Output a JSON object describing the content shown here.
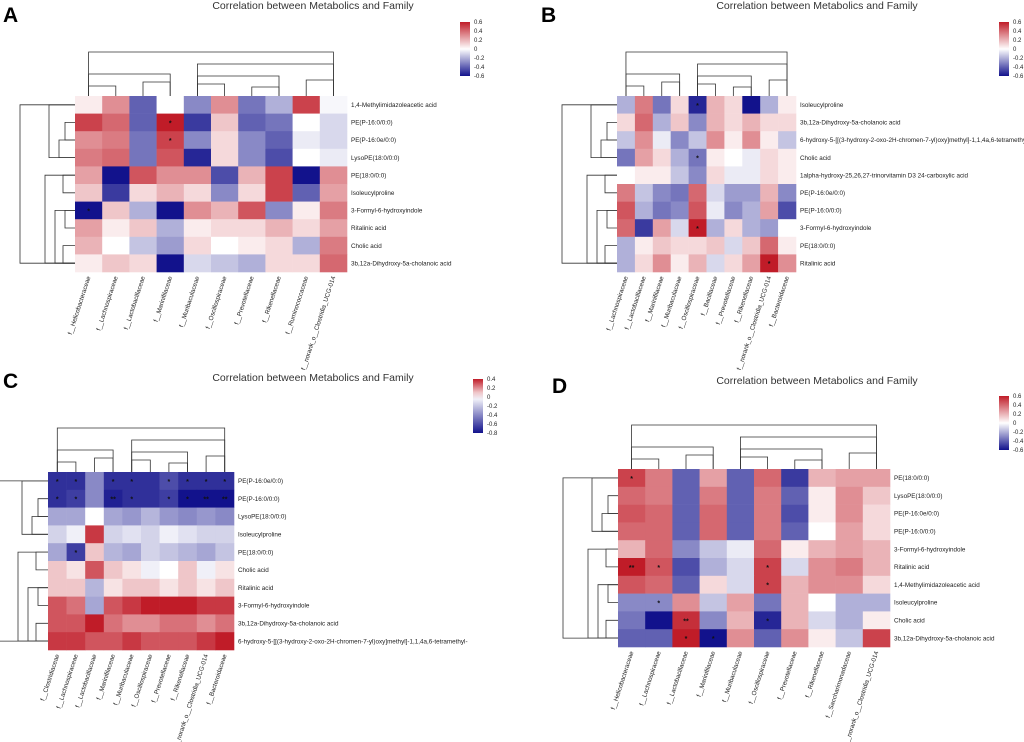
{
  "chart_data": [
    {
      "type": "heatmap",
      "panel_label": "A",
      "title": "Correlation between Metabolics and Family",
      "colorbar_ticks": [
        "0.6",
        "0.4",
        "0.2",
        "0",
        "-0.2",
        "-0.4",
        "-0.6"
      ],
      "vmin": -0.6,
      "vmax": 0.6,
      "columns": [
        "f__Helicobacteraceae",
        "f__Lachnospiraceae",
        "f__Lactobacillaceae",
        "f__Marinifilaceae",
        "f__Muribaculaceae",
        "f__Oscillospiraceae",
        "f__Prevotellaceae",
        "f__Rikenellaceae",
        "f__Ruminococcaceae",
        "f__norank_o__Clostridia_UCG-014"
      ],
      "rows": [
        "1,4-Methylimidazoleacetic acid",
        "PE(P-16:0/0:0)",
        "PE(P-16:0e/0:0)",
        "LysoPE(18:0/0:0)",
        "PE(18:0/0:0)",
        "Isoleucylproline",
        "3-Formyl-6-hydroxyindole",
        "Ritalinic acid",
        "Cholic acid",
        "3b,12a-Dihydroxy-5a-cholanoic acid"
      ],
      "values": [
        [
          0.05,
          0.3,
          -0.4,
          0.0,
          -0.3,
          0.3,
          -0.35,
          -0.2,
          0.5,
          -0.02
        ],
        [
          0.5,
          0.4,
          -0.4,
          0.6,
          -0.5,
          0.15,
          -0.4,
          -0.35,
          0.0,
          -0.1
        ],
        [
          0.3,
          0.35,
          -0.35,
          0.5,
          -0.3,
          0.1,
          -0.3,
          -0.4,
          -0.05,
          -0.1
        ],
        [
          0.35,
          0.4,
          -0.35,
          0.45,
          -0.55,
          0.1,
          -0.3,
          -0.45,
          0.0,
          -0.05
        ],
        [
          0.25,
          -0.6,
          0.45,
          0.3,
          0.3,
          -0.45,
          0.2,
          0.5,
          -0.6,
          0.3
        ],
        [
          0.15,
          -0.5,
          0.1,
          0.2,
          0.1,
          -0.3,
          0.1,
          0.5,
          -0.4,
          0.25
        ],
        [
          -0.6,
          0.15,
          -0.2,
          -0.6,
          0.3,
          0.2,
          0.45,
          -0.3,
          0.05,
          0.35
        ],
        [
          0.25,
          0.05,
          0.15,
          -0.2,
          0.05,
          0.1,
          0.1,
          0.2,
          0.1,
          0.25
        ],
        [
          0.2,
          0.0,
          -0.15,
          -0.25,
          0.1,
          0.0,
          0.05,
          0.1,
          -0.2,
          0.35
        ],
        [
          0.05,
          0.15,
          0.1,
          -0.6,
          -0.1,
          -0.15,
          -0.2,
          0.1,
          0.1,
          0.4
        ]
      ],
      "marks": [
        {
          "row": 1,
          "col": 3,
          "text": "*"
        },
        {
          "row": 2,
          "col": 3,
          "text": "*"
        },
        {
          "row": 6,
          "col": 0,
          "text": "*"
        }
      ]
    },
    {
      "type": "heatmap",
      "panel_label": "B",
      "title": "Correlation between Metabolics and Family",
      "colorbar_ticks": [
        "0.6",
        "0.4",
        "0.2",
        "0",
        "-0.2",
        "-0.4",
        "-0.6"
      ],
      "vmin": -0.6,
      "vmax": 0.6,
      "columns": [
        "f__Lachnospiraceae",
        "f__Lactobacillaceae",
        "f__Marinifilaceae",
        "f__Muribaculaceae",
        "f__Oscillospiraceae",
        "f__Bacillaceae",
        "f__Prevotellaceae",
        "f__Rikenellaceae",
        "f__norank_o__Clostridia_UCG-014",
        "f__Bacteroidaceae"
      ],
      "rows": [
        "Isoleucylproline",
        "3b,12a-Dihydroxy-5a-cholanoic acid",
        "6-hydroxy-5-[[(3-hydroxy-2-oxo-2H-chromen-7-yl)oxy]methyl]-1,1,4a,6-tetramethyl-",
        "Cholic acid",
        "1alpha-hydroxy-25,26,27-trinorvitamin D3 24-carboxylic acid",
        "PE(P-16:0e/0:0)",
        "PE(P-16:0/0:0)",
        "3-Formyl-6-hydroxyindole",
        "PE(18:0/0:0)",
        "Ritalinic acid"
      ],
      "values": [
        [
          -0.2,
          0.35,
          -0.35,
          0.1,
          -0.55,
          0.2,
          0.1,
          -0.6,
          -0.2,
          0.05
        ],
        [
          0.1,
          0.4,
          -0.2,
          0.15,
          -0.3,
          0.2,
          0.1,
          0.2,
          0.1,
          0.1
        ],
        [
          -0.15,
          0.3,
          -0.05,
          -0.3,
          -0.15,
          0.3,
          0.05,
          0.3,
          0.05,
          -0.15
        ],
        [
          -0.35,
          0.25,
          0.1,
          -0.2,
          -0.35,
          0.05,
          0.0,
          -0.05,
          0.1,
          0.05
        ],
        [
          0.0,
          0.05,
          0.05,
          -0.15,
          -0.3,
          0.1,
          -0.05,
          -0.05,
          0.1,
          0.05
        ],
        [
          0.35,
          -0.15,
          -0.3,
          -0.35,
          0.4,
          -0.1,
          -0.25,
          -0.25,
          0.2,
          -0.3
        ],
        [
          0.45,
          -0.2,
          -0.35,
          -0.3,
          0.45,
          -0.05,
          -0.3,
          -0.2,
          0.25,
          -0.45
        ],
        [
          0.4,
          -0.5,
          0.25,
          -0.1,
          0.6,
          -0.2,
          0.1,
          -0.2,
          -0.25,
          0.0
        ],
        [
          -0.2,
          0.05,
          0.15,
          0.1,
          0.1,
          0.15,
          -0.1,
          0.15,
          0.4,
          0.05
        ],
        [
          -0.2,
          0.1,
          0.3,
          0.05,
          0.2,
          -0.1,
          0.1,
          0.25,
          0.6,
          0.3
        ]
      ],
      "marks": [
        {
          "row": 0,
          "col": 4,
          "text": "*"
        },
        {
          "row": 3,
          "col": 4,
          "text": "*"
        },
        {
          "row": 7,
          "col": 4,
          "text": "*"
        },
        {
          "row": 9,
          "col": 8,
          "text": "*"
        }
      ]
    },
    {
      "type": "heatmap",
      "panel_label": "C",
      "title": "Correlation between Metabolics and Family",
      "colorbar_ticks": [
        "0.4",
        "0.2",
        "0",
        "-0.2",
        "-0.4",
        "-0.6",
        "-0.8"
      ],
      "vmin": -0.8,
      "vmax": 0.4,
      "columns": [
        "f__Clostridiaceae",
        "f__Lachnospiraceae",
        "f__Lactobacillaceae",
        "f__Marinifilaceae",
        "f__Muribaculaceae",
        "f__Oscillospiraceae",
        "f__Prevotellaceae",
        "f__Rikenellaceae",
        "f__norank_o__Clostridia_UCG-014",
        "f__Bacteroidaceae"
      ],
      "rows": [
        "PE(P-16:0e/0:0)",
        "PE(P-16:0/0:0)",
        "LysoPE(18:0/0:0)",
        "Isoleucylproline",
        "PE(18:0/0:0)",
        "Cholic acid",
        "Ritalinic acid",
        "3-Formyl-6-hydroxyindole",
        "3b,12a-Dihydroxy-5a-cholanoic acid",
        "6-hydroxy-5-[[(3-hydroxy-2-oxo-2H-chromen-7-yl)oxy]methyl]-1,1,4a,6-tetramethyl-"
      ],
      "values": [
        [
          -0.7,
          -0.7,
          -0.4,
          -0.7,
          -0.7,
          -0.7,
          -0.6,
          -0.7,
          -0.7,
          -0.7
        ],
        [
          -0.7,
          -0.65,
          -0.4,
          -0.75,
          -0.7,
          -0.7,
          -0.65,
          -0.8,
          -0.8,
          -0.8
        ],
        [
          -0.3,
          -0.3,
          0.0,
          -0.3,
          -0.35,
          -0.25,
          -0.35,
          -0.4,
          -0.35,
          -0.4
        ],
        [
          -0.15,
          -0.05,
          0.35,
          -0.15,
          -0.1,
          -0.15,
          -0.05,
          -0.1,
          -0.15,
          -0.15
        ],
        [
          -0.3,
          -0.65,
          0.1,
          -0.25,
          -0.3,
          -0.15,
          -0.2,
          -0.25,
          -0.3,
          -0.2
        ],
        [
          0.1,
          0.05,
          0.3,
          0.1,
          0.05,
          -0.05,
          0.0,
          0.1,
          -0.05,
          0.05
        ],
        [
          0.1,
          0.1,
          -0.25,
          0.05,
          0.1,
          0.1,
          0.05,
          0.1,
          0.05,
          0.1
        ],
        [
          0.3,
          0.25,
          -0.3,
          0.3,
          0.35,
          0.4,
          0.4,
          0.4,
          0.35,
          0.35
        ],
        [
          0.3,
          0.3,
          0.4,
          0.25,
          0.2,
          0.2,
          0.25,
          0.25,
          0.2,
          0.25
        ],
        [
          0.35,
          0.35,
          0.3,
          0.3,
          0.35,
          0.3,
          0.3,
          0.3,
          0.35,
          0.4
        ]
      ],
      "marks": [
        {
          "row": 0,
          "col": 0,
          "text": "*"
        },
        {
          "row": 0,
          "col": 1,
          "text": "*"
        },
        {
          "row": 0,
          "col": 3,
          "text": "*"
        },
        {
          "row": 0,
          "col": 4,
          "text": "*"
        },
        {
          "row": 0,
          "col": 6,
          "text": "*"
        },
        {
          "row": 0,
          "col": 7,
          "text": "*"
        },
        {
          "row": 0,
          "col": 8,
          "text": "*"
        },
        {
          "row": 0,
          "col": 9,
          "text": "*"
        },
        {
          "row": 1,
          "col": 0,
          "text": "*"
        },
        {
          "row": 1,
          "col": 1,
          "text": "*"
        },
        {
          "row": 1,
          "col": 3,
          "text": "**"
        },
        {
          "row": 1,
          "col": 4,
          "text": "*"
        },
        {
          "row": 1,
          "col": 6,
          "text": "*"
        },
        {
          "row": 1,
          "col": 7,
          "text": "*"
        },
        {
          "row": 1,
          "col": 8,
          "text": "**"
        },
        {
          "row": 1,
          "col": 9,
          "text": "**"
        },
        {
          "row": 4,
          "col": 1,
          "text": "*"
        }
      ]
    },
    {
      "type": "heatmap",
      "panel_label": "D",
      "title": "Correlation between Metabolics and Family",
      "colorbar_ticks": [
        "0.6",
        "0.4",
        "0.2",
        "0",
        "-0.2",
        "-0.4",
        "-0.6"
      ],
      "vmin": -0.6,
      "vmax": 0.6,
      "columns": [
        "f__Helicobacteraceae",
        "f__Lachnospiraceae",
        "f__Lactobacillaceae",
        "f__Marinifilaceae",
        "f__Muribaculaceae",
        "f__Oscillospiraceae",
        "f__Prevotellaceae",
        "f__Rikenellaceae",
        "f__Saccharimonadaceae",
        "f__norank_o__Clostridia_UCG-014"
      ],
      "rows": [
        "PE(18:0/0:0)",
        "LysoPE(18:0/0:0)",
        "PE(P-16:0e/0:0)",
        "PE(P-16:0/0:0)",
        "3-Formyl-6-hydroxyindole",
        "Ritalinic acid",
        "1,4-Methylimidazoleacetic acid",
        "Isoleucylproline",
        "Cholic acid",
        "3b,12a-Dihydroxy-5a-cholanoic acid"
      ],
      "values": [
        [
          0.5,
          0.35,
          -0.4,
          0.25,
          -0.4,
          0.4,
          -0.5,
          0.2,
          0.25,
          0.25
        ],
        [
          0.4,
          0.35,
          -0.4,
          0.35,
          -0.4,
          0.35,
          -0.4,
          0.05,
          0.3,
          0.15
        ],
        [
          0.45,
          0.4,
          -0.4,
          0.4,
          -0.4,
          0.35,
          -0.45,
          0.05,
          0.3,
          0.1
        ],
        [
          0.4,
          0.4,
          -0.4,
          0.4,
          -0.4,
          0.35,
          -0.4,
          0.0,
          0.25,
          0.1
        ],
        [
          0.2,
          0.4,
          -0.3,
          -0.15,
          -0.05,
          0.4,
          0.05,
          0.2,
          0.25,
          0.2
        ],
        [
          0.6,
          0.45,
          -0.45,
          -0.2,
          -0.1,
          0.5,
          -0.1,
          0.3,
          0.35,
          0.2
        ],
        [
          0.45,
          0.4,
          -0.4,
          0.1,
          -0.1,
          0.5,
          0.2,
          0.3,
          0.3,
          0.1
        ],
        [
          -0.3,
          -0.3,
          0.3,
          -0.15,
          0.25,
          -0.35,
          0.2,
          0.0,
          -0.2,
          -0.2
        ],
        [
          -0.35,
          -0.6,
          0.55,
          -0.3,
          0.2,
          -0.55,
          0.2,
          -0.1,
          -0.2,
          0.05
        ],
        [
          -0.4,
          -0.4,
          0.6,
          -0.6,
          0.3,
          -0.4,
          0.3,
          0.05,
          -0.15,
          0.5
        ]
      ],
      "marks": [
        {
          "row": 0,
          "col": 0,
          "text": "*"
        },
        {
          "row": 5,
          "col": 0,
          "text": "**"
        },
        {
          "row": 5,
          "col": 1,
          "text": "*"
        },
        {
          "row": 5,
          "col": 5,
          "text": "*"
        },
        {
          "row": 6,
          "col": 5,
          "text": "*"
        },
        {
          "row": 7,
          "col": 1,
          "text": "*"
        },
        {
          "row": 8,
          "col": 2,
          "text": "**"
        },
        {
          "row": 8,
          "col": 5,
          "text": "*"
        },
        {
          "row": 9,
          "col": 2,
          "text": "*"
        },
        {
          "row": 9,
          "col": 3,
          "text": "*"
        }
      ]
    }
  ]
}
